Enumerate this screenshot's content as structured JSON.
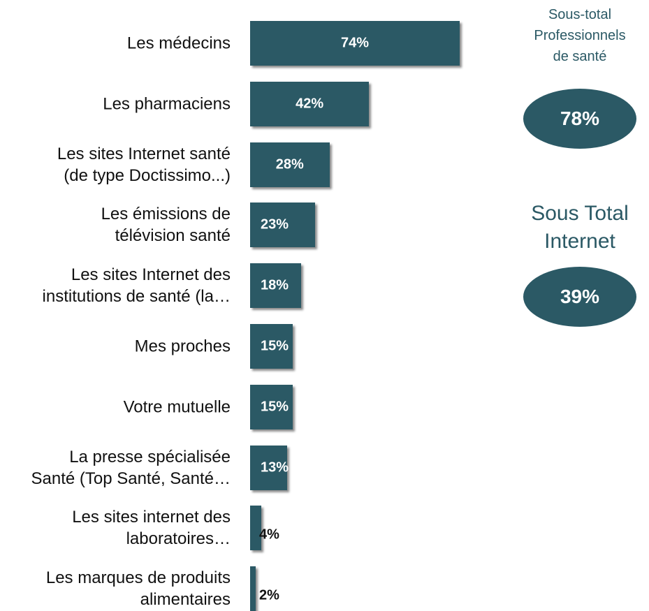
{
  "chart_data": {
    "type": "bar",
    "orientation": "horizontal",
    "categories": [
      "Les médecins",
      "Les pharmaciens",
      "Les sites Internet santé\n(de type Doctissimo...)",
      "Les émissions de\ntélévision santé",
      "Les sites Internet des\ninstitutions de santé (la…",
      "Mes proches",
      "Votre mutuelle",
      "La presse spécialisée\nSanté (Top Santé, Santé…",
      "Les sites internet des\nlaboratoires…",
      "Les marques de produits\nalimentaires"
    ],
    "values": [
      74,
      42,
      28,
      23,
      18,
      15,
      15,
      13,
      4,
      2
    ],
    "value_labels": [
      "74%",
      "42%",
      "28%",
      "23%",
      "18%",
      "15%",
      "15%",
      "13%",
      "4%",
      "2%"
    ],
    "color": "#2b5965",
    "subtotals": [
      {
        "title": "Sous-total\nProfessionnels\nde santé",
        "value": 78,
        "label": "78%"
      },
      {
        "title": "Sous Total\nInternet",
        "value": 39,
        "label": "39%"
      }
    ]
  }
}
